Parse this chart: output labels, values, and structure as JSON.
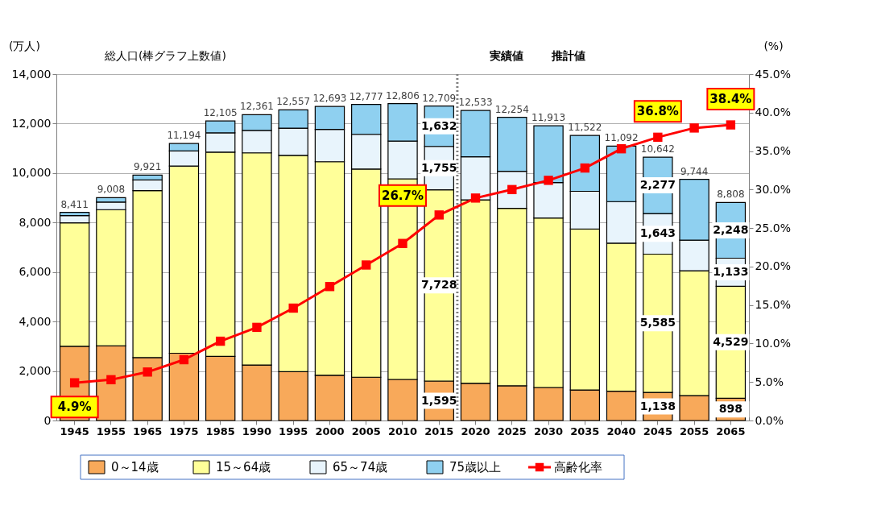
{
  "chart_data": {
    "type": "bar",
    "stacked": true,
    "ylabel": "(万人)",
    "y2label": "(%)",
    "categories": [
      "1945",
      "1955",
      "1965",
      "1975",
      "1985",
      "1990",
      "1995",
      "2000",
      "2005",
      "2010",
      "2015",
      "2020",
      "2025",
      "2030",
      "2035",
      "2040",
      "2045",
      "2055",
      "2065"
    ],
    "series": [
      {
        "name": "0～14歳",
        "color": "#f8a95a",
        "values": [
          2997,
          3016,
          2541,
          2719,
          2590,
          2245,
          1977,
          1829,
          1750,
          1661,
          1595,
          1503,
          1404,
          1335,
          1236,
          1186,
          1138,
          1008,
          898
        ],
        "value_labels": [
          null,
          null,
          null,
          null,
          null,
          null,
          null,
          null,
          null,
          null,
          "1,595",
          null,
          null,
          null,
          null,
          null,
          "1,138",
          null,
          "898"
        ]
      },
      {
        "name": "15～64歳",
        "color": "#ffff99",
        "values": [
          4993,
          5506,
          6753,
          7564,
          8256,
          8572,
          8740,
          8631,
          8414,
          8106,
          7728,
          7415,
          7168,
          6851,
          6505,
          5983,
          5585,
          5043,
          4529
        ],
        "value_labels": [
          null,
          null,
          null,
          null,
          null,
          null,
          null,
          null,
          null,
          null,
          "7,728",
          null,
          null,
          null,
          null,
          null,
          "5,585",
          null,
          "4,529"
        ]
      },
      {
        "name": "65～74歳",
        "color": "#e8f4fc",
        "values": [
          295,
          308,
          426,
          613,
          781,
          908,
          1098,
          1305,
          1403,
          1525,
          1755,
          1741,
          1503,
          1433,
          1522,
          1678,
          1643,
          1236,
          1133
        ],
        "value_labels": [
          null,
          null,
          null,
          null,
          null,
          null,
          null,
          null,
          null,
          null,
          "1,755",
          null,
          null,
          null,
          null,
          null,
          "1,643",
          null,
          "1,133"
        ]
      },
      {
        "name": "75歳以上",
        "color": "#8fd0f0",
        "values": [
          126,
          178,
          201,
          298,
          478,
          636,
          742,
          928,
          1210,
          1514,
          1632,
          1874,
          2179,
          2294,
          2259,
          2245,
          2277,
          2457,
          2248
        ],
        "value_labels": [
          null,
          null,
          null,
          null,
          null,
          null,
          null,
          null,
          null,
          null,
          "1,632",
          null,
          null,
          null,
          null,
          null,
          "2,277",
          null,
          "2,248"
        ]
      },
      {
        "name": "高齢化率",
        "type": "line",
        "axis": "y2",
        "color": "#ff0000",
        "marker": "square",
        "line_style": "solid",
        "values": [
          4.9,
          5.3,
          6.3,
          7.9,
          10.3,
          12.1,
          14.6,
          17.4,
          20.2,
          23.0,
          26.7,
          28.9,
          30.0,
          31.2,
          32.8,
          35.3,
          36.8,
          38.0,
          38.4
        ],
        "value_labels": [
          "4.9%",
          null,
          null,
          null,
          null,
          null,
          null,
          null,
          null,
          null,
          "26.7%",
          null,
          null,
          null,
          null,
          null,
          "36.8%",
          null,
          "38.4%"
        ]
      }
    ],
    "totals": [
      "8,411",
      "9,008",
      "9,921",
      "11,194",
      "12,105",
      "12,361",
      "12,557",
      "12,693",
      "12,777",
      "12,806",
      "12,709",
      "12,533",
      "12,254",
      "11,913",
      "11,522",
      "11,092",
      "10,642",
      "9,744",
      "8,808"
    ],
    "ylim": [
      0,
      14000
    ],
    "yticks": [
      {
        "value": 0,
        "label": "0"
      },
      {
        "value": 2000,
        "label": "2,000"
      },
      {
        "value": 4000,
        "label": "4,000"
      },
      {
        "value": 6000,
        "label": "6,000"
      },
      {
        "value": 8000,
        "label": "8,000"
      },
      {
        "value": 10000,
        "label": "10,000"
      },
      {
        "value": 12000,
        "label": "12,000"
      },
      {
        "value": 14000,
        "label": "14,000"
      }
    ],
    "y2lim": [
      0,
      45
    ],
    "y2ticks": [
      {
        "value": 0,
        "label": "0.0%"
      },
      {
        "value": 5,
        "label": "5.0%"
      },
      {
        "value": 10,
        "label": "10.0%"
      },
      {
        "value": 15,
        "label": "15.0%"
      },
      {
        "value": 20,
        "label": "20.0%"
      },
      {
        "value": 25,
        "label": "25.0%"
      },
      {
        "value": 30,
        "label": "30.0%"
      },
      {
        "value": 35,
        "label": "35.0%"
      },
      {
        "value": 40,
        "label": "40.0%"
      },
      {
        "value": 45,
        "label": "45.0%"
      }
    ],
    "ref_lines": [
      {
        "axis": "x",
        "value": "2015",
        "color": "#808080",
        "line_style": "dotted"
      }
    ],
    "annotations": [
      "総人口(棒グラフ上数値)",
      "実績値",
      "推計値"
    ],
    "grid": "y",
    "legend": "bottom"
  }
}
